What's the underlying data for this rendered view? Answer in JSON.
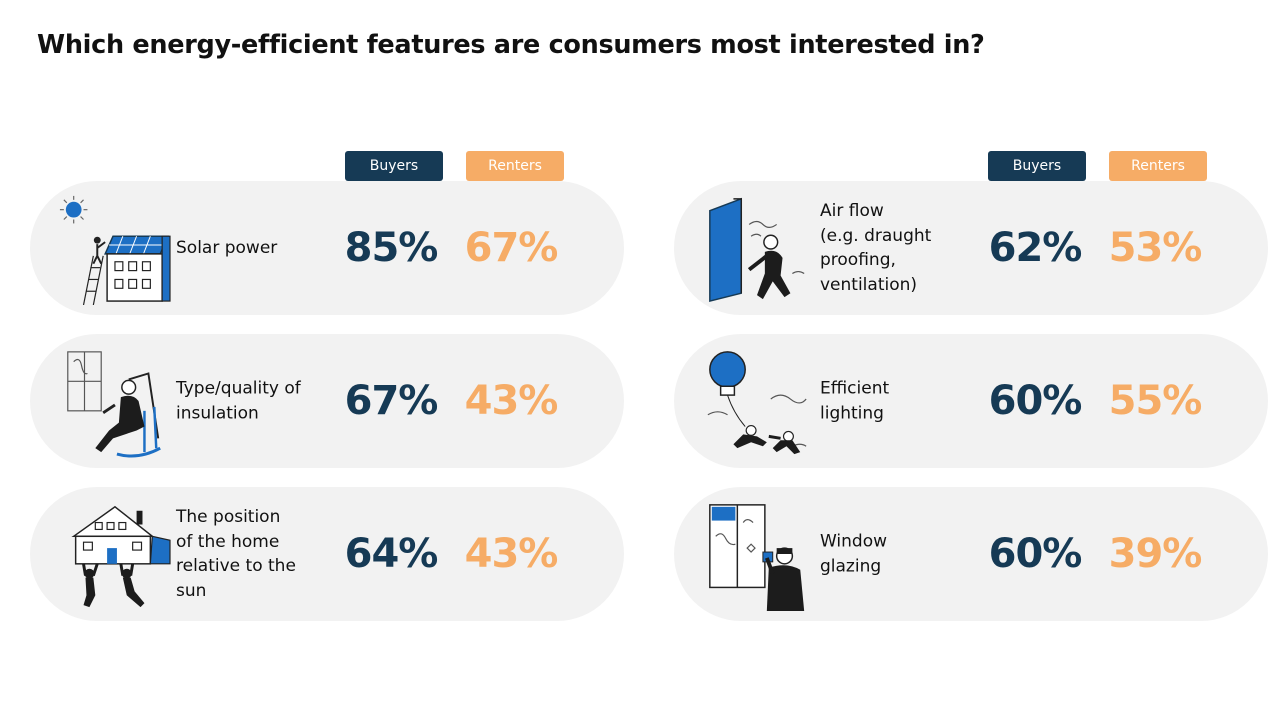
{
  "title": "Which energy-efficient features are consumers most interested in?",
  "legend": {
    "buyers": "Buyers",
    "renters": "Renters"
  },
  "colors": {
    "buyers": "#163a55",
    "renters": "#f6ac66",
    "card": "#f2f2f2",
    "icon_accent": "#1d6fc4"
  },
  "chart_data": {
    "type": "table",
    "title": "Which energy-efficient features are consumers most interested in?",
    "columns": [
      "Buyers",
      "Renters"
    ],
    "categories": [
      "Solar power",
      "Type/quality of insulation",
      "The position of the home relative to the sun",
      "Air flow (e.g. draught proofing, ventilation)",
      "Efficient lighting",
      "Window glazing"
    ],
    "series": [
      {
        "name": "Buyers",
        "values": [
          85,
          67,
          64,
          62,
          60,
          60
        ]
      },
      {
        "name": "Renters",
        "values": [
          67,
          43,
          43,
          53,
          55,
          39
        ]
      }
    ],
    "unit": "%"
  },
  "items": [
    {
      "label": "Solar power",
      "icon": "solar-house-icon",
      "buyers": "85%",
      "renters": "67%"
    },
    {
      "label": "Type/quality of\ninsulation",
      "icon": "person-rocking-chair-icon",
      "buyers": "67%",
      "renters": "43%"
    },
    {
      "label": "The position\nof the home\nrelative to the\nsun",
      "icon": "house-lifted-icon",
      "buyers": "64%",
      "renters": "43%"
    },
    {
      "label": "Air flow\n(e.g. draught\nproofing,\nventilation)",
      "icon": "person-at-door-icon",
      "buyers": "62%",
      "renters": "53%"
    },
    {
      "label": "Efficient\nlighting",
      "icon": "lightbulb-balloon-icon",
      "buyers": "60%",
      "renters": "55%"
    },
    {
      "label": "Window\nglazing",
      "icon": "person-at-window-icon",
      "buyers": "60%",
      "renters": "39%"
    }
  ]
}
